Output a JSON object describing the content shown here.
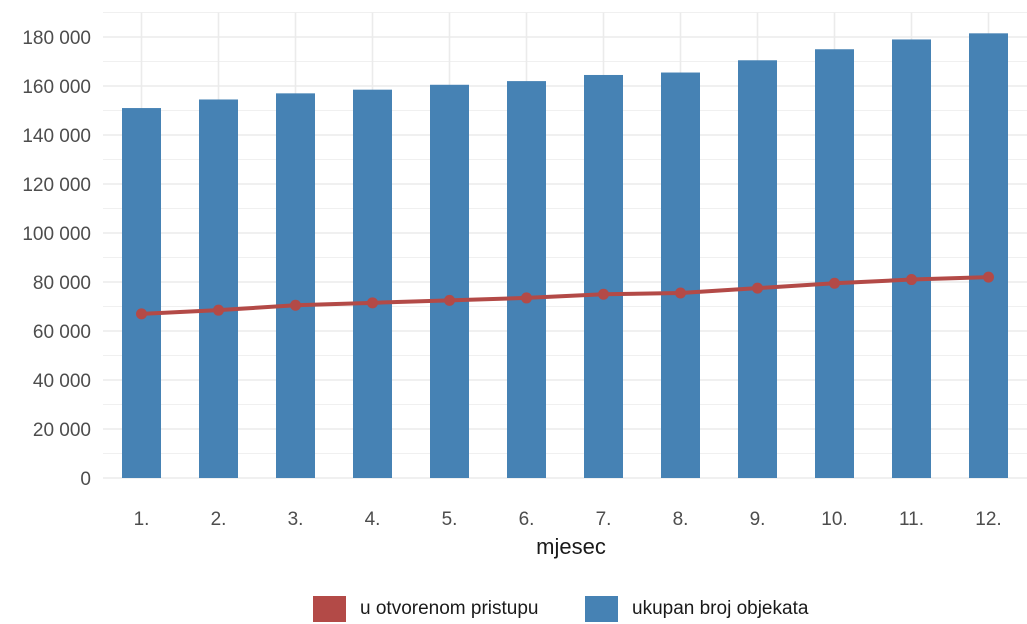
{
  "chart_data": {
    "type": "bar",
    "xlabel": "mjesec",
    "ylabel": "",
    "categories": [
      "1.",
      "2.",
      "3.",
      "4.",
      "5.",
      "6.",
      "7.",
      "8.",
      "9.",
      "10.",
      "11.",
      "12."
    ],
    "ylim": [
      0,
      190000
    ],
    "yticks": [
      0,
      20000,
      40000,
      60000,
      80000,
      100000,
      120000,
      140000,
      160000,
      180000
    ],
    "ytick_labels": [
      "0",
      "20 000",
      "40 000",
      "60 000",
      "80 000",
      "100 000",
      "120 000",
      "140 000",
      "160 000",
      "180 000"
    ],
    "grid": true,
    "legend_position": "bottom",
    "series": [
      {
        "name": "ukupan broj objekata",
        "kind": "bar",
        "color": "#4682b4",
        "values": [
          151000,
          154500,
          157000,
          158500,
          160500,
          162000,
          164500,
          165500,
          170500,
          175000,
          179000,
          181500
        ]
      },
      {
        "name": "u otvorenom pristupu",
        "kind": "line",
        "color": "#b34a47",
        "values": [
          67000,
          68500,
          70500,
          71500,
          72500,
          73500,
          75000,
          75500,
          77500,
          79500,
          81000,
          82000
        ]
      }
    ],
    "legend": [
      {
        "name": "u otvorenom pristupu",
        "color": "#b34a47"
      },
      {
        "name": "ukupan broj objekata",
        "color": "#4682b4"
      }
    ]
  }
}
